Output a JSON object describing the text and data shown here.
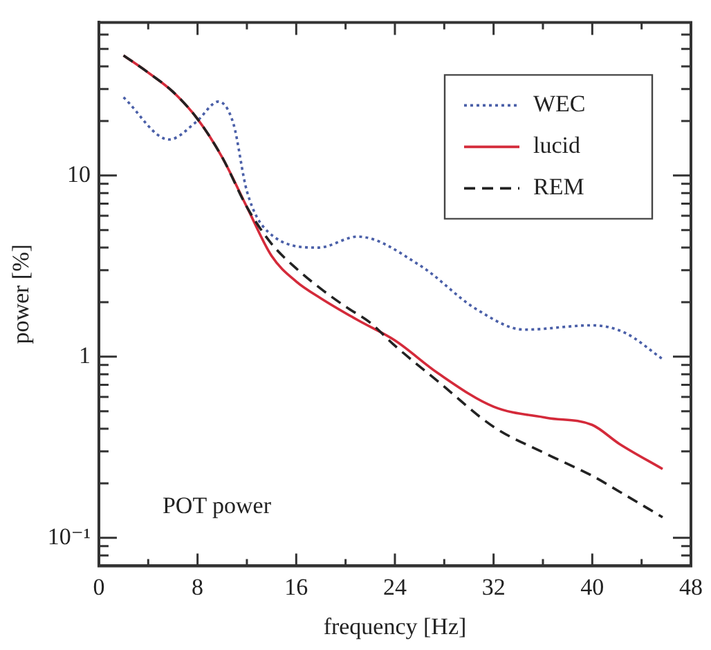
{
  "chart_data": {
    "type": "line",
    "xlabel": "frequency [Hz]",
    "ylabel": "power [%]",
    "log": "y",
    "legend": "top right",
    "marker": "none",
    "grid": false,
    "annotations": [
      "POT power"
    ],
    "xlim": [
      0,
      48
    ],
    "xticks": [
      0,
      {
        "value": 4,
        "label": null
      },
      8,
      {
        "value": 12,
        "label": null
      },
      16,
      {
        "value": 20,
        "label": null
      },
      24,
      {
        "value": 28,
        "label": null
      },
      32,
      {
        "value": 36,
        "label": null
      },
      40,
      {
        "value": 44,
        "label": null
      },
      48
    ],
    "ylim": [
      0.07,
      70
    ],
    "yticks": [
      {
        "value": 0.08,
        "label": null
      },
      {
        "value": 0.09,
        "label": null
      },
      {
        "value": 0.1,
        "label": "10⁻¹"
      },
      {
        "value": 0.2,
        "label": null
      },
      {
        "value": 0.3,
        "label": null
      },
      {
        "value": 0.4,
        "label": null
      },
      {
        "value": 0.5,
        "label": null
      },
      {
        "value": 0.6,
        "label": null
      },
      {
        "value": 0.7,
        "label": null
      },
      {
        "value": 0.8,
        "label": null
      },
      {
        "value": 0.9,
        "label": null
      },
      1,
      {
        "value": 2,
        "label": null
      },
      {
        "value": 3,
        "label": null
      },
      {
        "value": 4,
        "label": null
      },
      {
        "value": 5,
        "label": null
      },
      {
        "value": 6,
        "label": null
      },
      {
        "value": 7,
        "label": null
      },
      {
        "value": 8,
        "label": null
      },
      {
        "value": 9,
        "label": null
      },
      10,
      {
        "value": 20,
        "label": null
      },
      {
        "value": 30,
        "label": null
      },
      {
        "value": 40,
        "label": null
      },
      {
        "value": 50,
        "label": null
      },
      {
        "value": 60,
        "label": null
      },
      {
        "value": 70,
        "label": null
      }
    ],
    "series": [
      {
        "name": "WEC",
        "color": "#4a5fa8",
        "line_style": "dotted",
        "x": [
          2,
          5.7,
          7.9,
          9.7,
          10.9,
          12,
          13.7,
          17.8,
          21,
          26,
          30.6,
          34.5,
          40,
          42.6,
          45.7
        ],
        "values": [
          27,
          15.8,
          19.8,
          25.6,
          19.4,
          8.2,
          4.9,
          4,
          4.6,
          3.2,
          1.83,
          1.41,
          1.49,
          1.36,
          0.97
        ]
      },
      {
        "name": "lucid",
        "color": "#d42a3a",
        "line_style": "solid",
        "x": [
          2,
          4,
          6,
          8,
          10,
          12,
          14,
          16,
          18,
          21,
          24,
          27.5,
          32,
          36.3,
          40,
          42.2,
          45.7
        ],
        "values": [
          46,
          37,
          29,
          20.5,
          12.6,
          6.7,
          3.6,
          2.6,
          2.1,
          1.59,
          1.23,
          0.81,
          0.53,
          0.46,
          0.42,
          0.33,
          0.24
        ]
      },
      {
        "name": "REM",
        "color": "#222222",
        "line_style": "dashed",
        "x": [
          2,
          4,
          6,
          8,
          10,
          12,
          14,
          16,
          18,
          20,
          22,
          24,
          27.5,
          32,
          36.3,
          40,
          42.2,
          45.7
        ],
        "values": [
          46,
          37,
          29,
          20.5,
          12.6,
          6.7,
          4.2,
          3.07,
          2.37,
          1.89,
          1.54,
          1.15,
          0.73,
          0.41,
          0.29,
          0.22,
          0.18,
          0.13
        ]
      }
    ]
  }
}
